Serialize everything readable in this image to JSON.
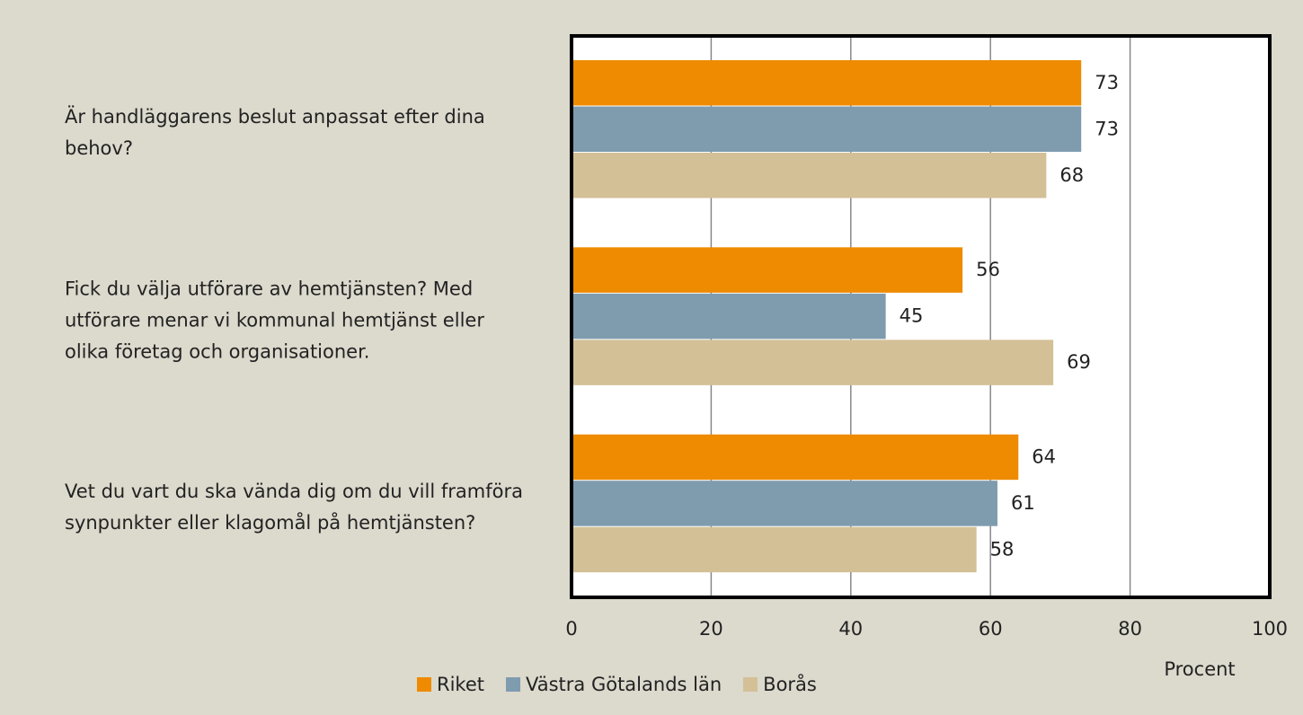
{
  "chart_data": {
    "type": "bar",
    "orientation": "horizontal",
    "categories": [
      "Är handläggarens beslut anpassat efter dina behov?",
      "Fick du välja utförare av hemtjänsten? Med utförare menar vi kommunal hemtjänst eller olika företag och organisationer.",
      "Vet du vart du ska vända dig om du vill framföra synpunkter eller klagomål på hemtjänsten?"
    ],
    "series": [
      {
        "name": "Riket",
        "color": "#ee8b00",
        "values": [
          73,
          56,
          64
        ]
      },
      {
        "name": "Västra Götalands län",
        "color": "#7f9caf",
        "values": [
          73,
          45,
          61
        ]
      },
      {
        "name": "Borås",
        "color": "#d3c097",
        "values": [
          68,
          69,
          58
        ]
      }
    ],
    "xlabel": "Procent",
    "xlim": [
      0,
      100
    ],
    "xticks": [
      0,
      20,
      40,
      60,
      80,
      100
    ],
    "grid": true,
    "legend": "bottom"
  }
}
